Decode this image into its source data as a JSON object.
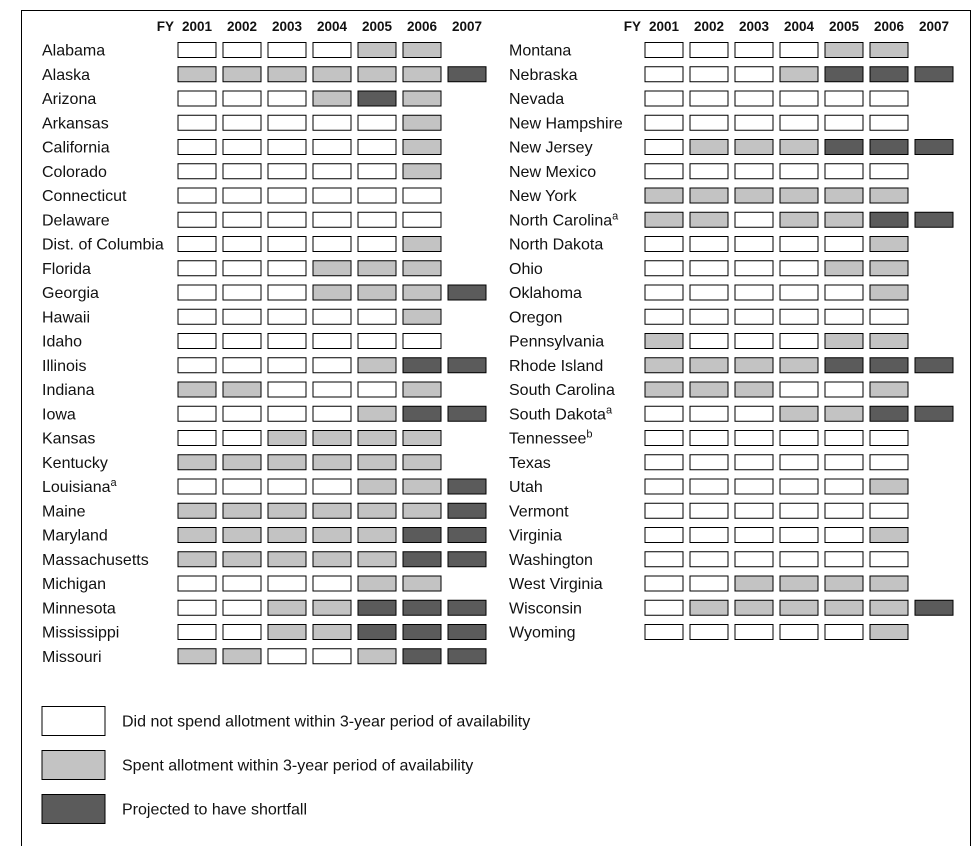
{
  "chart_data": {
    "type": "table",
    "status_key": {
      "0": "Did not spend allotment within 3-year period of availability",
      "1": "Spent allotment within 3-year period of availability",
      "2": "Projected to have shortfall"
    },
    "header_prefix": "FY",
    "years": [
      "2001",
      "2002",
      "2003",
      "2004",
      "2005",
      "2006",
      "2007"
    ],
    "colors": {
      "0": "#ffffff",
      "1": "#c3c3c3",
      "2": "#5b5b5b"
    },
    "legend": [
      {
        "status": 0,
        "label": "Did not spend allotment within 3-year period of availability"
      },
      {
        "status": 1,
        "label": "Spent allotment within 3-year period of availability"
      },
      {
        "status": 2,
        "label": "Projected to have shortfall"
      }
    ],
    "left_column": [
      {
        "state": "Alabama",
        "values": [
          0,
          0,
          0,
          0,
          1,
          1,
          null
        ]
      },
      {
        "state": "Alaska",
        "values": [
          1,
          1,
          1,
          1,
          1,
          1,
          2
        ]
      },
      {
        "state": "Arizona",
        "values": [
          0,
          0,
          0,
          1,
          2,
          1,
          null
        ]
      },
      {
        "state": "Arkansas",
        "values": [
          0,
          0,
          0,
          0,
          0,
          1,
          null
        ]
      },
      {
        "state": "California",
        "values": [
          0,
          0,
          0,
          0,
          0,
          1,
          null
        ]
      },
      {
        "state": "Colorado",
        "values": [
          0,
          0,
          0,
          0,
          0,
          1,
          null
        ]
      },
      {
        "state": "Connecticut",
        "values": [
          0,
          0,
          0,
          0,
          0,
          0,
          null
        ]
      },
      {
        "state": "Delaware",
        "values": [
          0,
          0,
          0,
          0,
          0,
          0,
          null
        ]
      },
      {
        "state": "Dist. of Columbia",
        "values": [
          0,
          0,
          0,
          0,
          0,
          1,
          null
        ]
      },
      {
        "state": "Florida",
        "values": [
          0,
          0,
          0,
          1,
          1,
          1,
          null
        ]
      },
      {
        "state": "Georgia",
        "values": [
          0,
          0,
          0,
          1,
          1,
          1,
          2
        ]
      },
      {
        "state": "Hawaii",
        "values": [
          0,
          0,
          0,
          0,
          0,
          1,
          null
        ]
      },
      {
        "state": "Idaho",
        "values": [
          0,
          0,
          0,
          0,
          0,
          0,
          null
        ]
      },
      {
        "state": "Illinois",
        "values": [
          0,
          0,
          0,
          0,
          1,
          2,
          2
        ]
      },
      {
        "state": "Indiana",
        "values": [
          1,
          1,
          0,
          0,
          0,
          1,
          null
        ]
      },
      {
        "state": "Iowa",
        "values": [
          0,
          0,
          0,
          0,
          1,
          2,
          2
        ]
      },
      {
        "state": "Kansas",
        "values": [
          0,
          0,
          1,
          1,
          1,
          1,
          null
        ]
      },
      {
        "state": "Kentucky",
        "values": [
          1,
          1,
          1,
          1,
          1,
          1,
          null
        ]
      },
      {
        "state": "Louisiana",
        "note": "a",
        "values": [
          0,
          0,
          0,
          0,
          1,
          1,
          2
        ]
      },
      {
        "state": "Maine",
        "values": [
          1,
          1,
          1,
          1,
          1,
          1,
          2
        ]
      },
      {
        "state": "Maryland",
        "values": [
          1,
          1,
          1,
          1,
          1,
          2,
          2
        ]
      },
      {
        "state": "Massachusetts",
        "values": [
          1,
          1,
          1,
          1,
          1,
          2,
          2
        ]
      },
      {
        "state": "Michigan",
        "values": [
          0,
          0,
          0,
          0,
          1,
          1,
          null
        ]
      },
      {
        "state": "Minnesota",
        "values": [
          0,
          0,
          1,
          1,
          2,
          2,
          2
        ]
      },
      {
        "state": "Mississippi",
        "values": [
          0,
          0,
          1,
          1,
          2,
          2,
          2
        ]
      },
      {
        "state": "Missouri",
        "values": [
          1,
          1,
          0,
          0,
          1,
          2,
          2
        ]
      }
    ],
    "right_column": [
      {
        "state": "Montana",
        "values": [
          0,
          0,
          0,
          0,
          1,
          1,
          null
        ]
      },
      {
        "state": "Nebraska",
        "values": [
          0,
          0,
          0,
          1,
          2,
          2,
          2
        ]
      },
      {
        "state": "Nevada",
        "values": [
          0,
          0,
          0,
          0,
          0,
          0,
          null
        ]
      },
      {
        "state": "New Hampshire",
        "values": [
          0,
          0,
          0,
          0,
          0,
          0,
          null
        ]
      },
      {
        "state": "New Jersey",
        "values": [
          0,
          1,
          1,
          1,
          2,
          2,
          2
        ]
      },
      {
        "state": "New Mexico",
        "values": [
          0,
          0,
          0,
          0,
          0,
          0,
          null
        ]
      },
      {
        "state": "New York",
        "values": [
          1,
          1,
          1,
          1,
          1,
          1,
          null
        ]
      },
      {
        "state": "North Carolina",
        "note": "a",
        "values": [
          1,
          1,
          0,
          1,
          1,
          2,
          2
        ]
      },
      {
        "state": "North Dakota",
        "values": [
          0,
          0,
          0,
          0,
          0,
          1,
          null
        ]
      },
      {
        "state": "Ohio",
        "values": [
          0,
          0,
          0,
          0,
          1,
          1,
          null
        ]
      },
      {
        "state": "Oklahoma",
        "values": [
          0,
          0,
          0,
          0,
          0,
          1,
          null
        ]
      },
      {
        "state": "Oregon",
        "values": [
          0,
          0,
          0,
          0,
          0,
          0,
          null
        ]
      },
      {
        "state": "Pennsylvania",
        "values": [
          1,
          0,
          0,
          0,
          1,
          1,
          null
        ]
      },
      {
        "state": "Rhode Island",
        "values": [
          1,
          1,
          1,
          1,
          2,
          2,
          2
        ]
      },
      {
        "state": "South Carolina",
        "values": [
          1,
          1,
          1,
          0,
          0,
          1,
          null
        ]
      },
      {
        "state": "South Dakota",
        "note": "a",
        "values": [
          0,
          0,
          0,
          1,
          1,
          2,
          2
        ]
      },
      {
        "state": "Tennessee",
        "note": "b",
        "values": [
          0,
          0,
          0,
          0,
          0,
          0,
          null
        ]
      },
      {
        "state": "Texas",
        "values": [
          0,
          0,
          0,
          0,
          0,
          0,
          null
        ]
      },
      {
        "state": "Utah",
        "values": [
          0,
          0,
          0,
          0,
          0,
          1,
          null
        ]
      },
      {
        "state": "Vermont",
        "values": [
          0,
          0,
          0,
          0,
          0,
          0,
          null
        ]
      },
      {
        "state": "Virginia",
        "values": [
          0,
          0,
          0,
          0,
          0,
          1,
          null
        ]
      },
      {
        "state": "Washington",
        "values": [
          0,
          0,
          0,
          0,
          0,
          0,
          null
        ]
      },
      {
        "state": "West Virginia",
        "values": [
          0,
          0,
          1,
          1,
          1,
          1,
          null
        ]
      },
      {
        "state": "Wisconsin",
        "values": [
          0,
          1,
          1,
          1,
          1,
          1,
          2
        ]
      },
      {
        "state": "Wyoming",
        "values": [
          0,
          0,
          0,
          0,
          0,
          1,
          null
        ]
      }
    ]
  }
}
